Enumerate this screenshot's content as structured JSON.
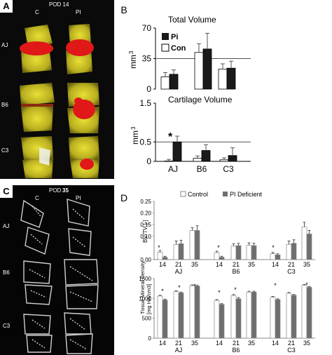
{
  "panels": {
    "A": {
      "letter": "A",
      "title": "POD 14",
      "col_labels": [
        "C",
        "PI"
      ],
      "row_labels": [
        "AJ",
        "B6",
        "C3"
      ]
    },
    "B": {
      "letter": "B"
    },
    "C": {
      "letter": "C",
      "title_prefix": "POD",
      "title_num": "35",
      "col_labels": [
        "C",
        "PI"
      ],
      "row_labels": [
        "AJ",
        "B6",
        "C3"
      ]
    },
    "D": {
      "letter": "D"
    }
  },
  "colors": {
    "black_bar": "#1a1a1a",
    "white_bar": "#ffffff",
    "grey_bar": "#6e6e6e",
    "red_label": "#d81818",
    "yellow_bone": "#d6cf2a"
  },
  "chart_data": [
    {
      "type": "bar",
      "title": "Total Volume",
      "ylabel": "mm",
      "ylabel_sup": "3",
      "yticks": [
        "0",
        "35",
        "70"
      ],
      "ylim": [
        0,
        70
      ],
      "reference_line": 35,
      "legend": [
        "Pi",
        "Con"
      ],
      "categories": [
        "AJ",
        "B6",
        "C3"
      ],
      "series": [
        {
          "name": "Con",
          "values": [
            14,
            42,
            23
          ],
          "err": [
            5,
            10,
            6
          ]
        },
        {
          "name": "Pi",
          "values": [
            17,
            46,
            24
          ],
          "err": [
            5,
            18,
            8
          ]
        }
      ]
    },
    {
      "type": "bar",
      "title": "Cartilage Volume",
      "ylabel": "mm",
      "ylabel_sup": "3",
      "yticks": [
        "0",
        "0.5",
        "1.5"
      ],
      "ylim": [
        0,
        1.5
      ],
      "reference_line": 0.5,
      "categories": [
        "AJ",
        "B6",
        "C3"
      ],
      "annotation": "*",
      "series": [
        {
          "name": "Con",
          "values": [
            0.01,
            0.08,
            0.04
          ],
          "err": [
            0.04,
            0.06,
            0.05
          ]
        },
        {
          "name": "Pi",
          "values": [
            0.5,
            0.28,
            0.15
          ],
          "err": [
            0.15,
            0.15,
            0.2
          ]
        }
      ]
    },
    {
      "type": "bar",
      "ylabel": "BV/TV [-]",
      "yticks": [
        "0.00",
        "0.10",
        "0.15",
        "0.20",
        "0.25"
      ],
      "ylim": [
        0,
        0.25
      ],
      "legend": [
        "Control",
        "PI Deficient"
      ],
      "groups": [
        "AJ",
        "B6",
        "C3"
      ],
      "categories": [
        "14",
        "21",
        "35"
      ],
      "series": [
        {
          "name": "Control",
          "values": [
            [
              0.032,
              0.065,
              0.125
            ],
            [
              0.03,
              0.058,
              0.062
            ],
            [
              0.025,
              0.065,
              0.14
            ]
          ],
          "err": [
            [
              0.007,
              0.015,
              0.012
            ],
            [
              0.006,
              0.01,
              0.01
            ],
            [
              0.006,
              0.015,
              0.02
            ]
          ]
        },
        {
          "name": "PI Deficient",
          "values": [
            [
              0.01,
              0.068,
              0.125
            ],
            [
              0.01,
              0.06,
              0.06
            ],
            [
              0.02,
              0.07,
              0.11
            ]
          ],
          "err": [
            [
              0.004,
              0.015,
              0.02
            ],
            [
              0.004,
              0.01,
              0.01
            ],
            [
              0.005,
              0.015,
              0.015
            ]
          ]
        }
      ],
      "asterisks": [
        "*",
        "*",
        "*"
      ]
    },
    {
      "type": "bar",
      "ylabel": "Tissue Mineral Density",
      "ylabel2": "[mg HA/cm3]",
      "yticks": [
        "0",
        "500",
        "1000",
        "1500"
      ],
      "ylim": [
        0,
        1500
      ],
      "groups": [
        "AJ",
        "B6",
        "C3"
      ],
      "categories": [
        "14",
        "21",
        "35"
      ],
      "series": [
        {
          "name": "Control",
          "values": [
            [
              1060,
              1170,
              1320
            ],
            [
              950,
              1070,
              1160
            ],
            [
              1030,
              1130,
              1330
            ]
          ],
          "err": [
            [
              20,
              20,
              20
            ],
            [
              20,
              30,
              20
            ],
            [
              20,
              20,
              20
            ]
          ]
        },
        {
          "name": "PI Deficient",
          "values": [
            [
              960,
              1140,
              1310
            ],
            [
              850,
              990,
              1160
            ],
            [
              970,
              1080,
              1280
            ]
          ],
          "err": [
            [
              20,
              20,
              20
            ],
            [
              20,
              30,
              20
            ],
            [
              20,
              20,
              20
            ]
          ]
        }
      ],
      "asterisks": [
        "*",
        "*",
        "*",
        "*",
        "*",
        "*",
        "*",
        "*"
      ]
    }
  ]
}
